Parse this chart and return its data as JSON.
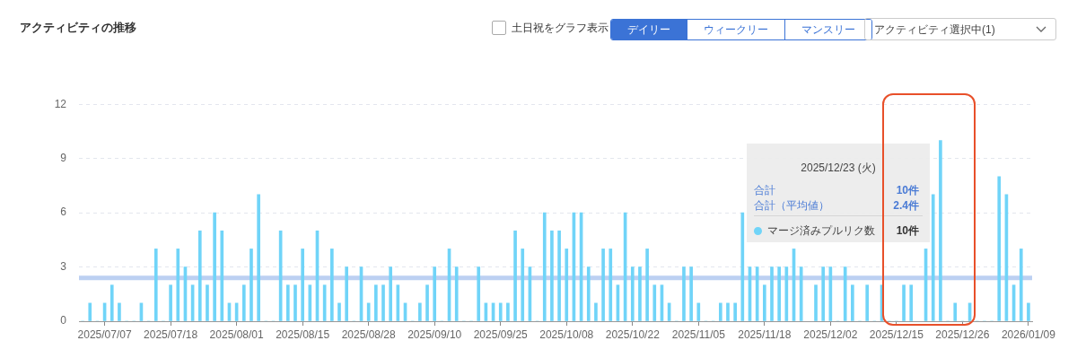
{
  "chart_data": {
    "type": "bar",
    "title": "アクティビティの推移",
    "categories": [
      null,
      null,
      null,
      "2025/07/07",
      null,
      null,
      null,
      null,
      null,
      null,
      null,
      null,
      "2025/07/18",
      null,
      null,
      null,
      null,
      null,
      null,
      null,
      null,
      "2025/08/01",
      null,
      null,
      null,
      null,
      null,
      null,
      null,
      null,
      "2025/08/15",
      null,
      null,
      null,
      null,
      null,
      null,
      null,
      null,
      "2025/08/28",
      null,
      null,
      null,
      null,
      null,
      null,
      null,
      null,
      "2025/09/10",
      null,
      null,
      null,
      null,
      null,
      null,
      null,
      null,
      "2025/09/25",
      null,
      null,
      null,
      null,
      null,
      null,
      null,
      null,
      "2025/10/08",
      null,
      null,
      null,
      null,
      null,
      null,
      null,
      null,
      "2025/10/22",
      null,
      null,
      null,
      null,
      null,
      null,
      null,
      null,
      "2025/11/05",
      null,
      null,
      null,
      null,
      null,
      null,
      null,
      null,
      "2025/11/18",
      null,
      null,
      null,
      null,
      null,
      null,
      null,
      null,
      "2025/12/02",
      null,
      null,
      null,
      null,
      null,
      null,
      null,
      null,
      "2025/12/15",
      null,
      null,
      null,
      null,
      null,
      null,
      null,
      null,
      "2025/12/26",
      null,
      null,
      null,
      null,
      null,
      null,
      null,
      null,
      "2026/01/09"
    ],
    "series": [
      {
        "name": "マージ済みプルリク数",
        "color": "#70d4f8",
        "values": [
          0,
          1,
          0,
          1,
          2,
          1,
          0,
          0,
          1,
          0,
          4,
          0,
          2,
          4,
          3,
          2,
          5,
          2,
          6,
          5,
          1,
          1,
          2,
          4,
          7,
          0,
          0,
          5,
          2,
          2,
          4,
          2,
          5,
          2,
          4,
          1,
          3,
          0,
          3,
          1,
          2,
          2,
          3,
          2,
          1,
          0,
          1,
          2,
          3,
          0,
          4,
          3,
          0,
          0,
          3,
          1,
          1,
          1,
          1,
          5,
          4,
          3,
          0,
          6,
          5,
          5,
          4,
          6,
          6,
          3,
          1,
          4,
          4,
          2,
          6,
          3,
          3,
          4,
          2,
          2,
          1,
          0,
          3,
          3,
          1,
          0,
          0,
          1,
          1,
          1,
          6,
          3,
          3,
          2,
          3,
          3,
          3,
          4,
          3,
          null,
          2,
          3,
          3,
          0,
          3,
          2,
          0,
          2,
          0,
          2,
          0,
          0,
          2,
          2,
          null,
          4,
          7,
          10,
          0,
          1,
          0,
          1,
          0,
          0,
          0,
          8,
          7,
          2,
          4,
          1
        ]
      }
    ],
    "ylim": [
      0,
      12
    ],
    "yticks": [
      0,
      3,
      6,
      9,
      12
    ],
    "grid": "y",
    "ref_lines": [
      {
        "axis": "y",
        "value": 2.4,
        "color": "#bcd0f2"
      }
    ],
    "annotations": [
      "土日祝をグラフ表示",
      "デイリー",
      "ウィークリー",
      "マンスリー",
      "アクティビティ選択中(1)",
      "2025/12/23 (火)",
      "合計",
      "10件",
      "合計（平均値）",
      "2.4件",
      "10件"
    ]
  }
}
